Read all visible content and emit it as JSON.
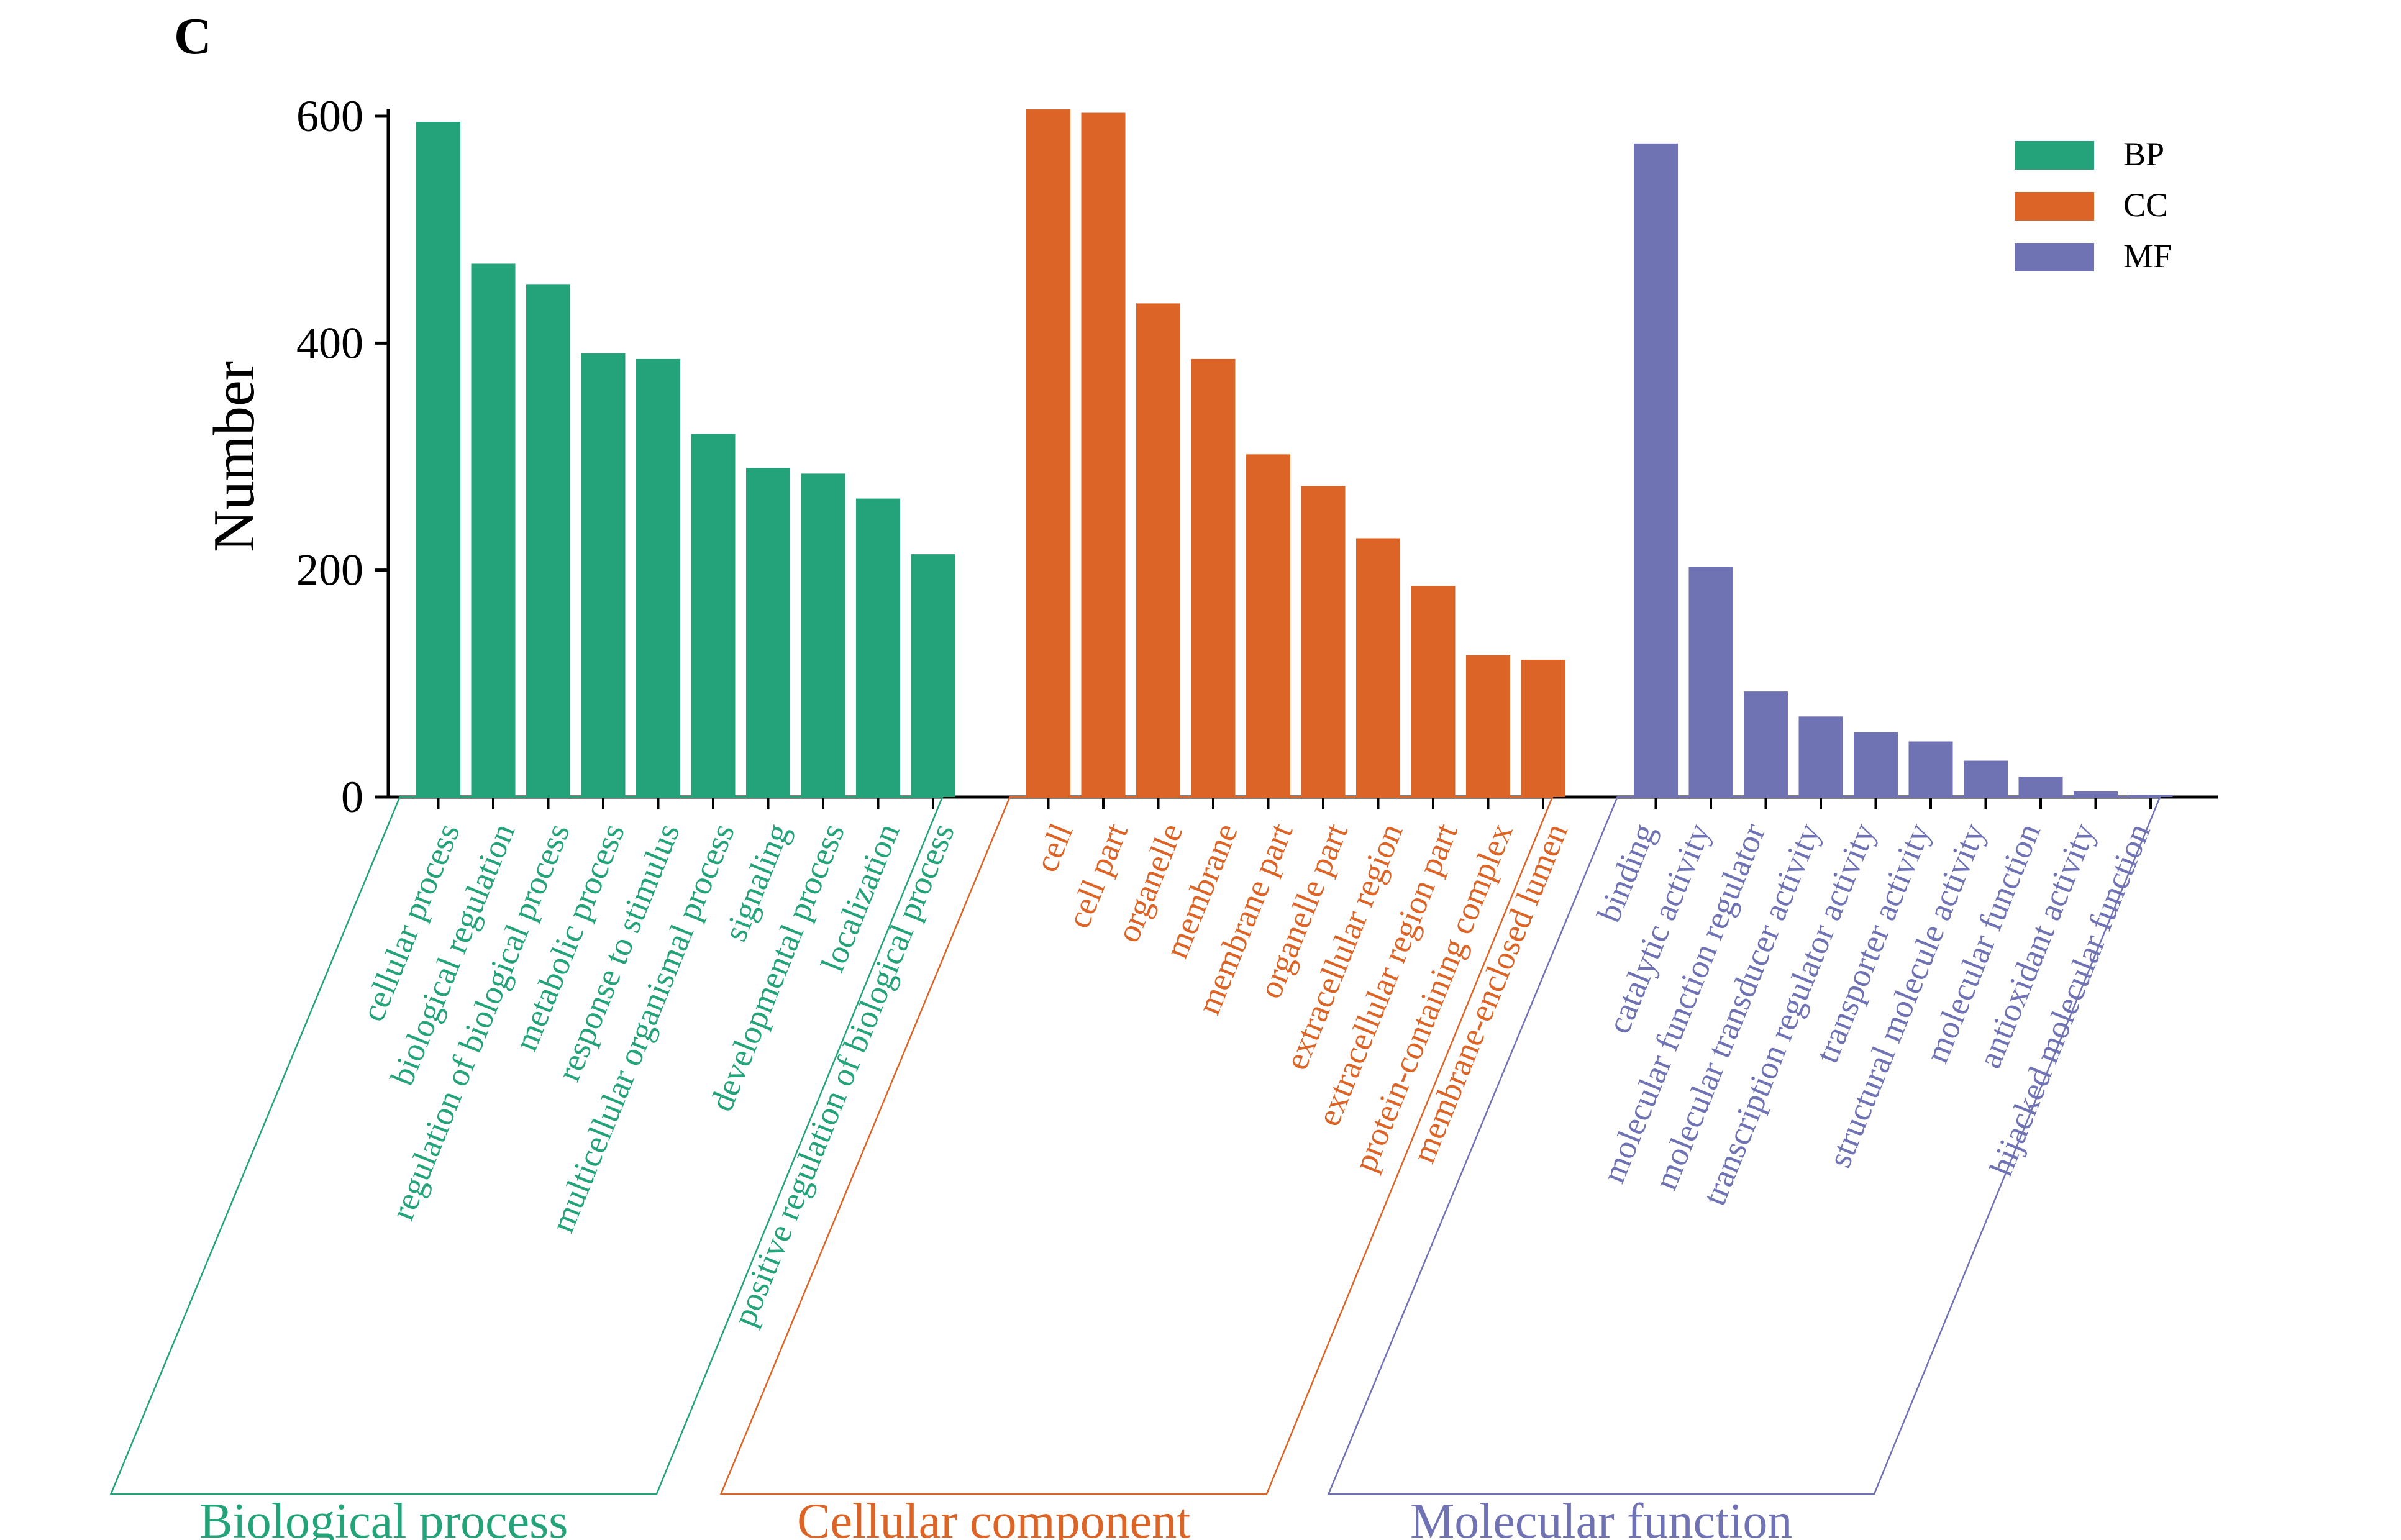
{
  "panel_label": "C",
  "chart_data": {
    "type": "bar",
    "ylabel": "Number",
    "xlabel": "",
    "ylim": [
      0,
      600
    ],
    "yticks": [
      0,
      200,
      400,
      600
    ],
    "grid": false,
    "legend_position": "top-right",
    "groups": [
      {
        "key": "BP",
        "group_label": "Biological process",
        "color": "#24a27a",
        "categories": [
          "cellular process",
          "biological regulation",
          "regulation of biological process",
          "metabolic process",
          "response to stimulus",
          "multicellular organismal process",
          "signaling",
          "developmental process",
          "localization",
          "positive regulation of biological process"
        ],
        "values": [
          595,
          470,
          452,
          391,
          386,
          320,
          290,
          285,
          263,
          214
        ]
      },
      {
        "key": "CC",
        "group_label": "Cellular component",
        "color": "#db6426",
        "categories": [
          "cell",
          "cell part",
          "organelle",
          "membrane",
          "membrane part",
          "organelle part",
          "extracellular region",
          "extracellular region part",
          "protein-containing complex",
          "membrane-enclosed lumen"
        ],
        "values": [
          606,
          603,
          435,
          386,
          302,
          274,
          228,
          186,
          125,
          121
        ]
      },
      {
        "key": "MF",
        "group_label": "Molecular function",
        "color": "#6f72b3",
        "categories": [
          "binding",
          "catalytic activity",
          "molecular function regulator",
          "molecular transducer activity",
          "transcription regulator activity",
          "transporter activity",
          "structural molecule activity",
          "molecular function",
          "antioxidant activity",
          "hijacked molecular function"
        ],
        "values": [
          576,
          203,
          93,
          71,
          57,
          49,
          32,
          18,
          5,
          2
        ]
      }
    ],
    "legend": [
      {
        "label": "BP",
        "color": "#24a27a"
      },
      {
        "label": "CC",
        "color": "#db6426"
      },
      {
        "label": "MF",
        "color": "#6f72b3"
      }
    ]
  }
}
